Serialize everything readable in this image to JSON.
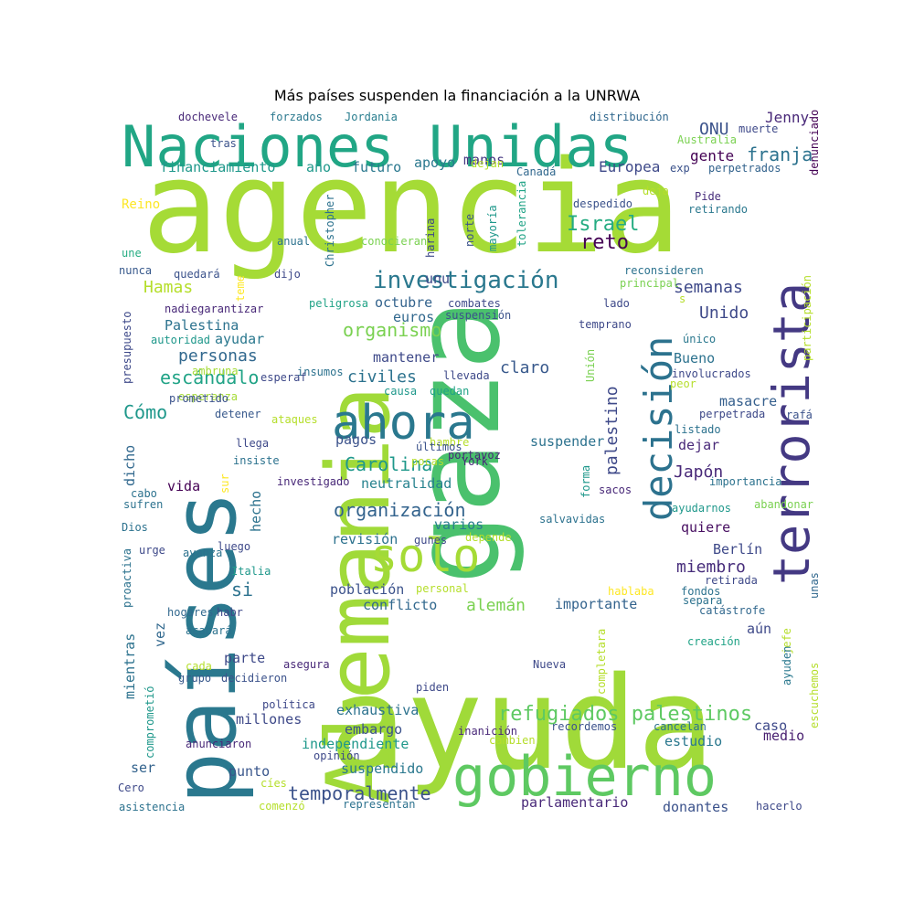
{
  "title": "Más países suspenden la financiación a la UNRWA",
  "words": [
    {
      "text": "agencia",
      "color": "#a5db36"
    },
    {
      "text": "gaza",
      "color": "#4ac16d"
    },
    {
      "text": "ayuda",
      "color": "#a0da39"
    },
    {
      "text": "Alemania",
      "color": "#a0da39"
    },
    {
      "text": "países",
      "color": "#2a788e"
    },
    {
      "text": "Naciones Unidas",
      "color": "#21a685"
    },
    {
      "text": "gobierno",
      "color": "#5ec962"
    },
    {
      "text": "terrorista",
      "color": "#443983"
    },
    {
      "text": "decisión",
      "color": "#2c728e"
    },
    {
      "text": "ahora",
      "color": "#2a788e"
    },
    {
      "text": "solo",
      "color": "#a5db36"
    },
    {
      "text": "investigación",
      "color": "#2a788e"
    },
    {
      "text": "refugiados palestinos",
      "color": "#5ec962"
    },
    {
      "text": "organización",
      "color": "#33638d"
    },
    {
      "text": "temporalmente",
      "color": "#3b528b"
    },
    {
      "text": "Carolina",
      "color": "#1f988b"
    },
    {
      "text": "Israel",
      "color": "#25ac82"
    },
    {
      "text": "reto",
      "color": "#440154"
    },
    {
      "text": "franja",
      "color": "#2c728e"
    },
    {
      "text": "Hamas",
      "color": "#b5de2b"
    },
    {
      "text": "organismo",
      "color": "#7ad151"
    },
    {
      "text": "escándalo",
      "color": "#20a386"
    },
    {
      "text": "personas",
      "color": "#31688e"
    },
    {
      "text": "alemán",
      "color": "#7ad151"
    },
    {
      "text": "palestino",
      "color": "#3e4989"
    },
    {
      "text": "civiles",
      "color": "#2c728e"
    },
    {
      "text": "claro",
      "color": "#38598c"
    },
    {
      "text": "Unido",
      "color": "#3e4989"
    },
    {
      "text": "Cómo",
      "color": "#1f988b"
    },
    {
      "text": "Japón",
      "color": "#482878"
    },
    {
      "text": "miembro",
      "color": "#472d7b"
    },
    {
      "text": "ONU",
      "color": "#3b528b"
    },
    {
      "text": "Jenny",
      "color": "#482878"
    },
    {
      "text": "semanas",
      "color": "#3e4989"
    },
    {
      "text": "gente",
      "color": "#440154"
    },
    {
      "text": "Europea",
      "color": "#3e4989"
    },
    {
      "text": "financiamiento",
      "color": "#1f988b"
    },
    {
      "text": "año",
      "color": "#1f988b"
    },
    {
      "text": "futuro",
      "color": "#2a788e"
    },
    {
      "text": "apoyo",
      "color": "#2a788e"
    },
    {
      "text": "manos",
      "color": "#453781"
    },
    {
      "text": "unu",
      "color": "#3e4989"
    },
    {
      "text": "octubre",
      "color": "#33638d"
    },
    {
      "text": "euros",
      "color": "#31688e"
    },
    {
      "text": "Palestina",
      "color": "#2c728e"
    },
    {
      "text": "ayudar",
      "color": "#2a788e"
    },
    {
      "text": "mantener",
      "color": "#3e4989"
    },
    {
      "text": "pagos",
      "color": "#3b528b"
    },
    {
      "text": "suspender",
      "color": "#2c728e"
    },
    {
      "text": "neutralidad",
      "color": "#26828e"
    },
    {
      "text": "Bueno",
      "color": "#2c728e"
    },
    {
      "text": "masacre",
      "color": "#355f8d"
    },
    {
      "text": "dejar",
      "color": "#482878"
    },
    {
      "text": "revisión",
      "color": "#2c728e"
    },
    {
      "text": "varios",
      "color": "#287d8e"
    },
    {
      "text": "población",
      "color": "#3b528b"
    },
    {
      "text": "conflicto",
      "color": "#31688e"
    },
    {
      "text": "importante",
      "color": "#33638d"
    },
    {
      "text": "quiere",
      "color": "#470e61"
    },
    {
      "text": "Berlín",
      "color": "#3e4989"
    },
    {
      "text": "si",
      "color": "#2c728e"
    },
    {
      "text": "vida",
      "color": "#440154"
    },
    {
      "text": "parte",
      "color": "#3e4989"
    },
    {
      "text": "exhaustiva",
      "color": "#2c728e"
    },
    {
      "text": "millones",
      "color": "#3e4989"
    },
    {
      "text": "embargo",
      "color": "#3b528b"
    },
    {
      "text": "independiente",
      "color": "#1f988b"
    },
    {
      "text": "suspendido",
      "color": "#2a788e"
    },
    {
      "text": "punto",
      "color": "#39568c"
    },
    {
      "text": "ser",
      "color": "#33638d"
    },
    {
      "text": "parlamentario",
      "color": "#482878"
    },
    {
      "text": "donantes",
      "color": "#3b528b"
    },
    {
      "text": "estudio",
      "color": "#2a788e"
    },
    {
      "text": "medio",
      "color": "#481f70"
    },
    {
      "text": "caso",
      "color": "#3e4989"
    },
    {
      "text": "aún",
      "color": "#3e4989"
    },
    {
      "text": "hecho",
      "color": "#2c728e"
    },
    {
      "text": "dicho",
      "color": "#31688e"
    },
    {
      "text": "vez",
      "color": "#31688e"
    },
    {
      "text": "mientras",
      "color": "#2c728e"
    },
    {
      "text": "Reino",
      "color": "#fde725"
    },
    {
      "text": "dochevele",
      "color": "#482878"
    },
    {
      "text": "forzados",
      "color": "#2a788e"
    },
    {
      "text": "Jordania",
      "color": "#287d8e"
    },
    {
      "text": "distribución",
      "color": "#31688e"
    },
    {
      "text": "tras",
      "color": "#3b528b"
    },
    {
      "text": "muerte",
      "color": "#3e4989"
    },
    {
      "text": "Australia",
      "color": "#7ad151"
    },
    {
      "text": "exp",
      "color": "#3b528b"
    },
    {
      "text": "perpetrados",
      "color": "#33638d"
    },
    {
      "text": "dejan",
      "color": "#b5de2b"
    },
    {
      "text": "Canadá",
      "color": "#31688e"
    },
    {
      "text": "deja",
      "color": "#b5de2b"
    },
    {
      "text": "despedido",
      "color": "#3b528b"
    },
    {
      "text": "Pide",
      "color": "#472d7b"
    },
    {
      "text": "retirando",
      "color": "#2a788e"
    },
    {
      "text": "denunciado",
      "color": "#440154"
    },
    {
      "text": "Christopher",
      "color": "#2c728e"
    },
    {
      "text": "tolerancia",
      "color": "#20a386"
    },
    {
      "text": "mayoría",
      "color": "#1f988b"
    },
    {
      "text": "norte",
      "color": "#3b528b"
    },
    {
      "text": "harina",
      "color": "#3e4989"
    },
    {
      "text": "conocieran",
      "color": "#7ad151"
    },
    {
      "text": "anual",
      "color": "#2c728e"
    },
    {
      "text": "une",
      "color": "#25ac82"
    },
    {
      "text": "nunca",
      "color": "#38598c"
    },
    {
      "text": "quedará",
      "color": "#3b528b"
    },
    {
      "text": "teme",
      "color": "#fde725"
    },
    {
      "text": "dijo",
      "color": "#3e4989"
    },
    {
      "text": "reconsideren",
      "color": "#2c728e"
    },
    {
      "text": "principal",
      "color": "#7ad151"
    },
    {
      "text": "lado",
      "color": "#3e4989"
    },
    {
      "text": "s",
      "color": "#b5de2b"
    },
    {
      "text": "participación",
      "color": "#b5de2b"
    },
    {
      "text": "presupuesto",
      "color": "#3e4989"
    },
    {
      "text": "nadiegarantizar",
      "color": "#482878"
    },
    {
      "text": "peligrosa",
      "color": "#20a386"
    },
    {
      "text": "combates",
      "color": "#3e4989"
    },
    {
      "text": "suspensión",
      "color": "#3b528b"
    },
    {
      "text": "temprano",
      "color": "#3e4989"
    },
    {
      "text": "autoridad",
      "color": "#1f988b"
    },
    {
      "text": "único",
      "color": "#2a788e"
    },
    {
      "text": "ambruna",
      "color": "#a5db36"
    },
    {
      "text": "insumos",
      "color": "#2c728e"
    },
    {
      "text": "esperaf",
      "color": "#3e4989"
    },
    {
      "text": "llevada",
      "color": "#3e4989"
    },
    {
      "text": "Unión",
      "color": "#7ad151"
    },
    {
      "text": "involucrados",
      "color": "#3e4989"
    },
    {
      "text": "peor",
      "color": "#b5de2b"
    },
    {
      "text": "esperanza",
      "color": "#a5db36"
    },
    {
      "text": "causa",
      "color": "#1f988b"
    },
    {
      "text": "quedan",
      "color": "#20a386"
    },
    {
      "text": "prometido",
      "color": "#3b528b"
    },
    {
      "text": "detener",
      "color": "#38598c"
    },
    {
      "text": "ataques",
      "color": "#b5de2b"
    },
    {
      "text": "rafá",
      "color": "#3b528b"
    },
    {
      "text": "perpetrada",
      "color": "#3e4989"
    },
    {
      "text": "listado",
      "color": "#2c728e"
    },
    {
      "text": "llega",
      "color": "#3e4989"
    },
    {
      "text": "hambre",
      "color": "#b5de2b"
    },
    {
      "text": "últimos",
      "color": "#3b528b"
    },
    {
      "text": "portavoz",
      "color": "#482878"
    },
    {
      "text": "York",
      "color": "#482878"
    },
    {
      "text": "insiste",
      "color": "#2c728e"
    },
    {
      "text": "pocas",
      "color": "#b5de2b"
    },
    {
      "text": "investigado",
      "color": "#482878"
    },
    {
      "text": "sur",
      "color": "#fde725"
    },
    {
      "text": "forma",
      "color": "#1f988b"
    },
    {
      "text": "sacos",
      "color": "#482878"
    },
    {
      "text": "importancia",
      "color": "#2c728e"
    },
    {
      "text": "cabo",
      "color": "#2c728e"
    },
    {
      "text": "sufren",
      "color": "#2c728e"
    },
    {
      "text": "ayudarnos",
      "color": "#1f988b"
    },
    {
      "text": "abandonar",
      "color": "#7ad151"
    },
    {
      "text": "Dios",
      "color": "#2c728e"
    },
    {
      "text": "salvavidas",
      "color": "#2c728e"
    },
    {
      "text": "urge",
      "color": "#3e4989"
    },
    {
      "text": "gunes",
      "color": "#3e4989"
    },
    {
      "text": "depende",
      "color": "#b5de2b"
    },
    {
      "text": "luego",
      "color": "#3e4989"
    },
    {
      "text": "avanza",
      "color": "#2c728e"
    },
    {
      "text": "proactiva",
      "color": "#2c728e"
    },
    {
      "text": "Italia",
      "color": "#1f988b"
    },
    {
      "text": "personal",
      "color": "#b5de2b"
    },
    {
      "text": "hablaba",
      "color": "#fde725"
    },
    {
      "text": "retirada",
      "color": "#3e4989"
    },
    {
      "text": "fondos",
      "color": "#2c728e"
    },
    {
      "text": "unas",
      "color": "#31688e"
    },
    {
      "text": "hogares",
      "color": "#31688e"
    },
    {
      "text": "habr",
      "color": "#3e4989"
    },
    {
      "text": "separa",
      "color": "#2c728e"
    },
    {
      "text": "catástrofe",
      "color": "#31688e"
    },
    {
      "text": "acabará",
      "color": "#2c728e"
    },
    {
      "text": "jefe",
      "color": "#b5de2b"
    },
    {
      "text": "creación",
      "color": "#20a386"
    },
    {
      "text": "ayuden",
      "color": "#2a788e"
    },
    {
      "text": "cada",
      "color": "#b5de2b"
    },
    {
      "text": "grupo",
      "color": "#38598c"
    },
    {
      "text": "decidieron",
      "color": "#3b528b"
    },
    {
      "text": "asegura",
      "color": "#482878"
    },
    {
      "text": "Nueva",
      "color": "#3e4989"
    },
    {
      "text": "completara",
      "color": "#b5de2b"
    },
    {
      "text": "escuchemos",
      "color": "#b5de2b"
    },
    {
      "text": "comprometió",
      "color": "#1f988b"
    },
    {
      "text": "política",
      "color": "#3e4989"
    },
    {
      "text": "piden",
      "color": "#3e4989"
    },
    {
      "text": "inanición",
      "color": "#482878"
    },
    {
      "text": "recordemos",
      "color": "#3b528b"
    },
    {
      "text": "anunciaron",
      "color": "#482878"
    },
    {
      "text": "cambien",
      "color": "#b5de2b"
    },
    {
      "text": "cancelan",
      "color": "#2c728e"
    },
    {
      "text": "opinión",
      "color": "#3e4989"
    },
    {
      "text": "Cero",
      "color": "#3e4989"
    },
    {
      "text": "cíes",
      "color": "#b5de2b"
    },
    {
      "text": "asistencia",
      "color": "#2c728e"
    },
    {
      "text": "comenzó",
      "color": "#b5de2b"
    },
    {
      "text": "representan",
      "color": "#2c728e"
    },
    {
      "text": "hacerlo",
      "color": "#3e4989"
    }
  ]
}
